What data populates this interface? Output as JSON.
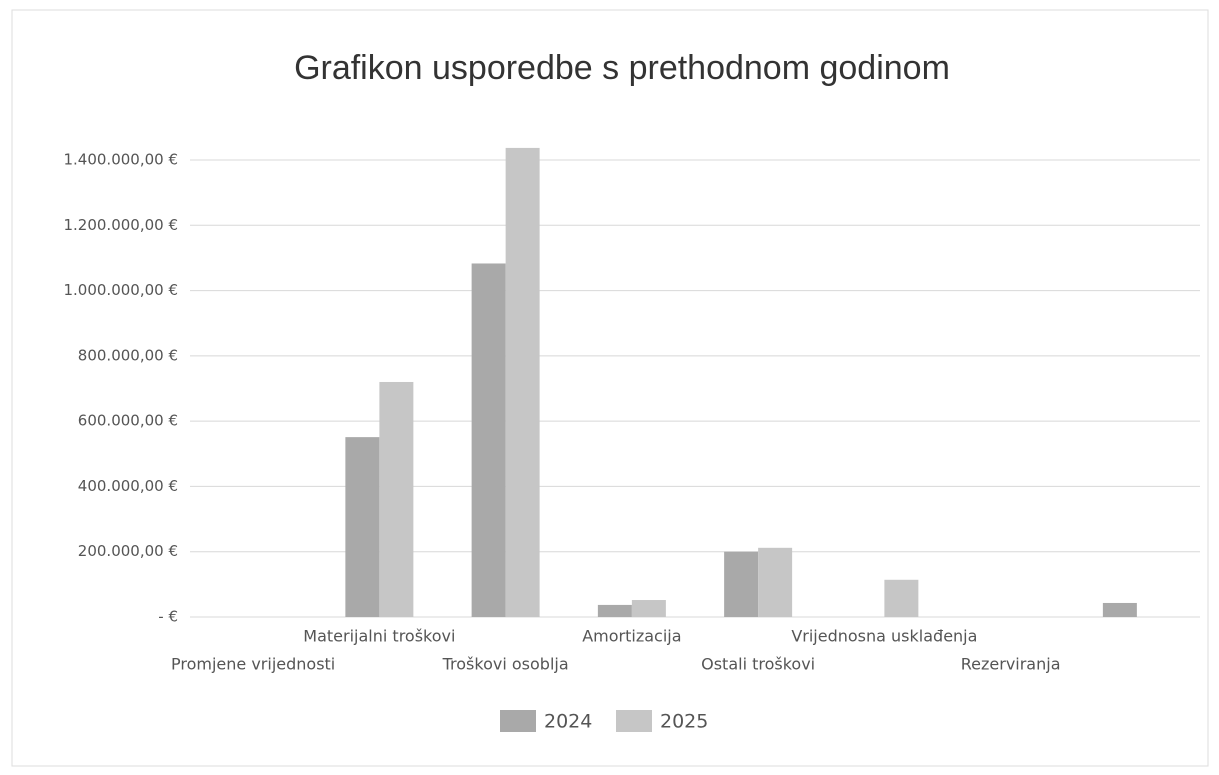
{
  "chart_data": {
    "type": "bar",
    "title": "Grafikon usporedbe s prethodnom godinom",
    "categories": [
      "Promjene vrijednosti",
      "Materijalni troškovi",
      "Troškovi osoblja",
      "Amortizacija",
      "Ostali troškovi",
      "Vrijednosna usklađenja",
      "Rezerviranja",
      null
    ],
    "series": [
      {
        "name": "2024",
        "color": "#a9a9a9",
        "values": [
          0,
          551000,
          1083000,
          37000,
          200000,
          0,
          0,
          43000
        ]
      },
      {
        "name": "2025",
        "color": "#c6c6c6",
        "values": [
          0,
          720000,
          1437000,
          52000,
          212000,
          114000,
          0,
          0
        ]
      }
    ],
    "ylim": [
      0,
      1400000
    ],
    "yticks": [
      {
        "value": 0,
        "label": "-   €"
      },
      {
        "value": 200000,
        "label": "200.000,00 €"
      },
      {
        "value": 400000,
        "label": "400.000,00 €"
      },
      {
        "value": 600000,
        "label": "600.000,00 €"
      },
      {
        "value": 800000,
        "label": "800.000,00 €"
      },
      {
        "value": 1000000,
        "label": "1.000.000,00 €"
      },
      {
        "value": 1200000,
        "label": "1.200.000,00 €"
      },
      {
        "value": 1400000,
        "label": "1.400.000,00 €"
      }
    ],
    "grid": true,
    "legend": "bottom"
  }
}
